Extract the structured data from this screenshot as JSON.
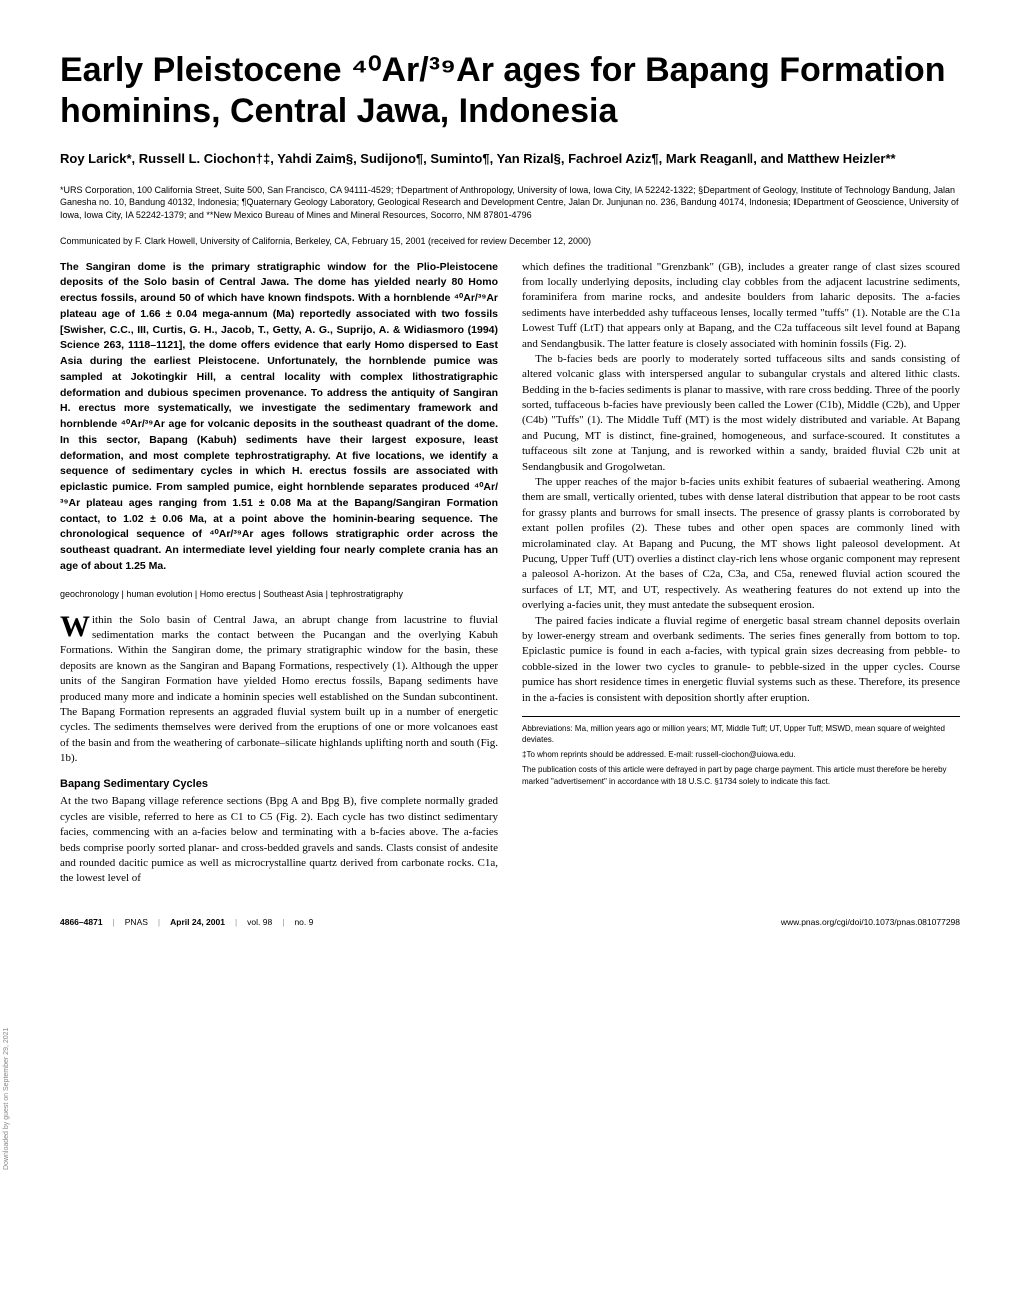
{
  "title": "Early Pleistocene ⁴⁰Ar/³⁹Ar ages for Bapang Formation hominins, Central Jawa, Indonesia",
  "authors": "Roy Larick*, Russell L. Ciochon†‡, Yahdi Zaim§, Sudijono¶, Suminto¶, Yan Rizal§, Fachroel Aziz¶, Mark Reagan‖, and Matthew Heizler**",
  "affiliations": "*URS Corporation, 100 California Street, Suite 500, San Francisco, CA 94111-4529; †Department of Anthropology, University of Iowa, Iowa City, IA 52242-1322; §Department of Geology, Institute of Technology Bandung, Jalan Ganesha no. 10, Bandung 40132, Indonesia; ¶Quaternary Geology Laboratory, Geological Research and Development Centre, Jalan Dr. Junjunan no. 236, Bandung 40174, Indonesia; ‖Department of Geoscience, University of Iowa, Iowa City, IA 52242-1379; and **New Mexico Bureau of Mines and Mineral Resources, Socorro, NM 87801-4796",
  "communicated": "Communicated by F. Clark Howell, University of California, Berkeley, CA, February 15, 2001 (received for review December 12, 2000)",
  "abstract": "The Sangiran dome is the primary stratigraphic window for the Plio-Pleistocene deposits of the Solo basin of Central Jawa. The dome has yielded nearly 80 Homo erectus fossils, around 50 of which have known findspots. With a hornblende ⁴⁰Ar/³⁹Ar plateau age of 1.66 ± 0.04 mega-annum (Ma) reportedly associated with two fossils [Swisher, C.C., III, Curtis, G. H., Jacob, T., Getty, A. G., Suprijo, A. & Widiasmoro (1994) Science 263, 1118–1121], the dome offers evidence that early Homo dispersed to East Asia during the earliest Pleistocene. Unfortunately, the hornblende pumice was sampled at Jokotingkir Hill, a central locality with complex lithostratigraphic deformation and dubious specimen provenance. To address the antiquity of Sangiran H. erectus more systematically, we investigate the sedimentary framework and hornblende ⁴⁰Ar/³⁹Ar age for volcanic deposits in the southeast quadrant of the dome. In this sector, Bapang (Kabuh) sediments have their largest exposure, least deformation, and most complete tephrostratigraphy. At five locations, we identify a sequence of sedimentary cycles in which H. erectus fossils are associated with epiclastic pumice. From sampled pumice, eight hornblende separates produced ⁴⁰Ar/³⁹Ar plateau ages ranging from 1.51 ± 0.08 Ma at the Bapang/Sangiran Formation contact, to 1.02 ± 0.06 Ma, at a point above the hominin-bearing sequence. The chronological sequence of ⁴⁰Ar/³⁹Ar ages follows stratigraphic order across the southeast quadrant. An intermediate level yielding four nearly complete crania has an age of about 1.25 Ma.",
  "keywords": "geochronology | human evolution | Homo erectus | Southeast Asia | tephrostratigraphy",
  "intro": "Within the Solo basin of Central Jawa, an abrupt change from lacustrine to fluvial sedimentation marks the contact between the Pucangan and the overlying Kabuh Formations. Within the Sangiran dome, the primary stratigraphic window for the basin, these deposits are known as the Sangiran and Bapang Formations, respectively (1). Although the upper units of the Sangiran Formation have yielded Homo erectus fossils, Bapang sediments have produced many more and indicate a hominin species well established on the Sundan subcontinent. The Bapang Formation represents an aggraded fluvial system built up in a number of energetic cycles. The sediments themselves were derived from the eruptions of one or more volcanoes east of the basin and from the weathering of carbonate–silicate highlands uplifting north and south (Fig. 1b).",
  "section1_heading": "Bapang Sedimentary Cycles",
  "section1_p1": "At the two Bapang village reference sections (Bpg A and Bpg B), five complete normally graded cycles are visible, referred to here as C1 to C5 (Fig. 2). Each cycle has two distinct sedimentary facies, commencing with an a-facies below and terminating with a b-facies above. The a-facies beds comprise poorly sorted planar- and cross-bedded gravels and sands. Clasts consist of andesite and rounded dacitic pumice as well as microcrystalline quartz derived from carbonate rocks. C1a, the lowest level of",
  "col2_p1": "which defines the traditional \"Grenzbank\" (GB), includes a greater range of clast sizes scoured from locally underlying deposits, including clay cobbles from the adjacent lacustrine sediments, foraminifera from marine rocks, and andesite boulders from laharic deposits. The a-facies sediments have interbedded ashy tuffaceous lenses, locally termed \"tuffs\" (1). Notable are the C1a Lowest Tuff (LtT) that appears only at Bapang, and the C2a tuffaceous silt level found at Bapang and Sendangbusik. The latter feature is closely associated with hominin fossils (Fig. 2).",
  "col2_p2": "The b-facies beds are poorly to moderately sorted tuffaceous silts and sands consisting of altered volcanic glass with interspersed angular to subangular crystals and altered lithic clasts. Bedding in the b-facies sediments is planar to massive, with rare cross bedding. Three of the poorly sorted, tuffaceous b-facies have previously been called the Lower (C1b), Middle (C2b), and Upper (C4b) \"Tuffs\" (1). The Middle Tuff (MT) is the most widely distributed and variable. At Bapang and Pucung, MT is distinct, fine-grained, homogeneous, and surface-scoured. It constitutes a tuffaceous silt zone at Tanjung, and is reworked within a sandy, braided fluvial C2b unit at Sendangbusik and Grogolwetan.",
  "col2_p3": "The upper reaches of the major b-facies units exhibit features of subaerial weathering. Among them are small, vertically oriented, tubes with dense lateral distribution that appear to be root casts for grassy plants and burrows for small insects. The presence of grassy plants is corroborated by extant pollen profiles (2). These tubes and other open spaces are commonly lined with microlaminated clay. At Bapang and Pucung, the MT shows light paleosol development. At Pucung, Upper Tuff (UT) overlies a distinct clay-rich lens whose organic component may represent a paleosol A-horizon. At the bases of C2a, C3a, and C5a, renewed fluvial action scoured the surfaces of LT, MT, and UT, respectively. As weathering features do not extend up into the overlying a-facies unit, they must antedate the subsequent erosion.",
  "col2_p4": "The paired facies indicate a fluvial regime of energetic basal stream channel deposits overlain by lower-energy stream and overbank sediments. The series fines generally from bottom to top. Epiclastic pumice is found in each a-facies, with typical grain sizes decreasing from pebble- to cobble-sized in the lower two cycles to granule- to pebble-sized in the upper cycles. Course pumice has short residence times in energetic fluvial systems such as these. Therefore, its presence in the a-facies is consistent with deposition shortly after eruption.",
  "footnote_abbrev": "Abbreviations: Ma, million years ago or million years; MT, Middle Tuff; UT, Upper Tuff; MSWD, mean square of weighted deviates.",
  "footnote_reprint": "‡To whom reprints should be addressed. E-mail: russell-ciochon@uiowa.edu.",
  "footnote_pub": "The publication costs of this article were defrayed in part by page charge payment. This article must therefore be hereby marked \"advertisement\" in accordance with 18 U.S.C. §1734 solely to indicate this fact.",
  "footer_pages": "4866–4871",
  "footer_pnas": "PNAS",
  "footer_date": "April 24, 2001",
  "footer_vol": "vol. 98",
  "footer_no": "no. 9",
  "footer_url": "www.pnas.org/cgi/doi/10.1073/pnas.081077298",
  "side_text": "Downloaded by guest on September 29, 2021"
}
